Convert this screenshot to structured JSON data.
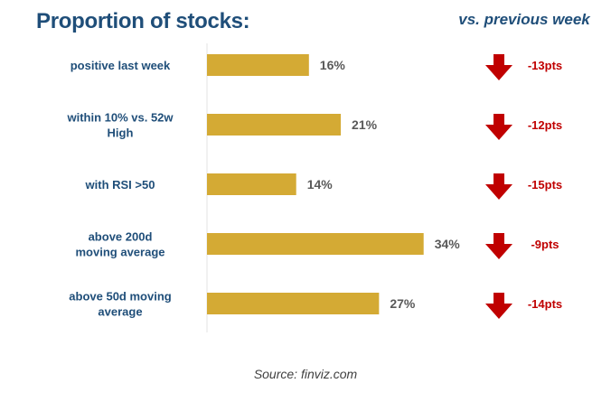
{
  "chart_data": {
    "type": "bar",
    "orientation": "horizontal",
    "title": "Proportion of stocks:",
    "categories": [
      [
        "positive last week"
      ],
      [
        "within 10% vs. 52w",
        "High"
      ],
      [
        "with RSI >50"
      ],
      [
        "above 200d",
        "moving average"
      ],
      [
        "above 50d moving",
        "average"
      ]
    ],
    "values": [
      16,
      21,
      14,
      34,
      27
    ],
    "value_labels": [
      "16%",
      "21%",
      "14%",
      "34%",
      "27%"
    ],
    "unit": "%",
    "xlim": [
      0,
      40
    ],
    "bar_color": "#d4aa34",
    "grid": false,
    "comparison": {
      "header": "vs. previous week",
      "changes": [
        -13,
        -12,
        -15,
        -9,
        -14
      ],
      "change_labels": [
        "-13pts",
        "-12pts",
        "-15pts",
        "-9pts",
        "-14pts"
      ],
      "arrow": "down-arrow-icon",
      "color": "#c00000"
    },
    "source": "Source: finviz.com"
  }
}
